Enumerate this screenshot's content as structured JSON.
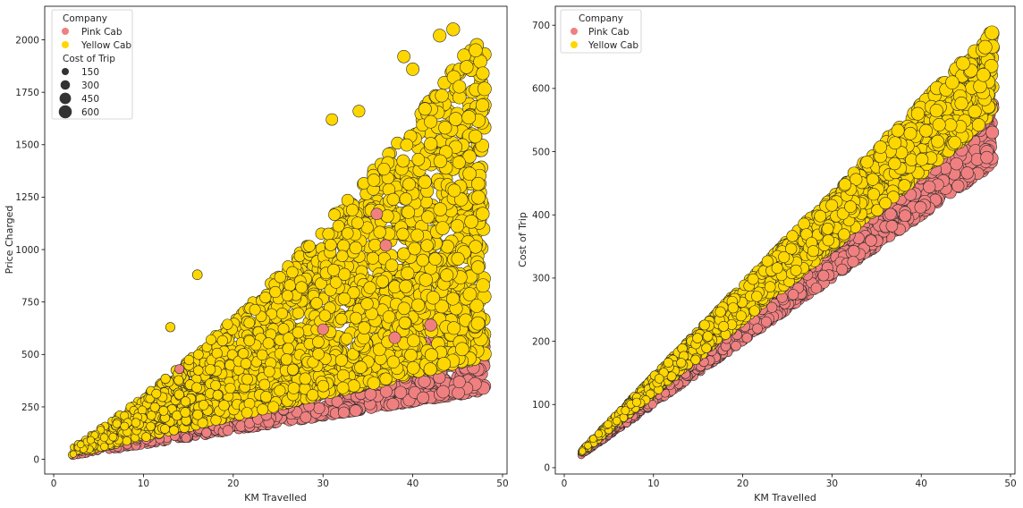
{
  "chart_data": [
    {
      "type": "scatter",
      "xlabel": "KM Travelled",
      "ylabel": "Price Charged",
      "xlim": [
        -1,
        50.5
      ],
      "ylim": [
        -70,
        2160
      ],
      "xticks": [
        "0",
        "10",
        "20",
        "30",
        "40",
        "50"
      ],
      "xtick_values": [
        0,
        10,
        20,
        30,
        40,
        50
      ],
      "yticks": [
        "0",
        "250",
        "500",
        "750",
        "1000",
        "1250",
        "1500",
        "1750",
        "2000"
      ],
      "ytick_values": [
        0,
        250,
        500,
        750,
        1000,
        1250,
        1500,
        1750,
        2000
      ],
      "legend": {
        "position": "top-left",
        "hue_title": "Company",
        "hue_entries": [
          {
            "label": "Pink Cab",
            "color": "#f08080"
          },
          {
            "label": "Yellow Cab",
            "color": "#ffd700"
          }
        ],
        "size_title": "Cost of Trip",
        "size_entries": [
          "150",
          "300",
          "450",
          "600"
        ],
        "size_values": [
          150,
          300,
          450,
          600
        ]
      },
      "series": [
        {
          "name": "Pink Cab",
          "color": "#f08080",
          "x_range": [
            1.9,
            48.0
          ],
          "price_per_km_range": [
            6.9,
            13.5
          ],
          "points_hint": [
            [
              2,
              25
            ],
            [
              10,
              95
            ],
            [
              20,
              200
            ],
            [
              30,
              290
            ],
            [
              40,
              390
            ],
            [
              45,
              440
            ],
            [
              48,
              480
            ],
            [
              48,
              600
            ]
          ]
        },
        {
          "name": "Yellow Cab",
          "color": "#ffd700",
          "x_range": [
            1.9,
            48.0
          ],
          "price_per_km_range": [
            10.0,
            45.0
          ],
          "points_hint": [
            [
              2,
              30
            ],
            [
              10,
              250
            ],
            [
              20,
              700
            ],
            [
              30,
              1100
            ],
            [
              40,
              1500
            ],
            [
              43,
              2020
            ],
            [
              44,
              2050
            ],
            [
              48,
              1700
            ]
          ]
        }
      ]
    },
    {
      "type": "scatter",
      "xlabel": "KM Travelled",
      "ylabel": "Cost of Trip",
      "xlim": [
        -1,
        50.5
      ],
      "ylim": [
        -10,
        730
      ],
      "xticks": [
        "0",
        "10",
        "20",
        "30",
        "40",
        "50"
      ],
      "xtick_values": [
        0,
        10,
        20,
        30,
        40,
        50
      ],
      "yticks": [
        "0",
        "100",
        "200",
        "300",
        "400",
        "500",
        "600",
        "700"
      ],
      "ytick_values": [
        0,
        100,
        200,
        300,
        400,
        500,
        600,
        700
      ],
      "legend": {
        "position": "top-left",
        "hue_title": "Company",
        "hue_entries": [
          {
            "label": "Pink Cab",
            "color": "#f08080"
          },
          {
            "label": "Yellow Cab",
            "color": "#ffd700"
          }
        ]
      },
      "series": [
        {
          "name": "Pink Cab",
          "color": "#f08080",
          "x_range": [
            1.9,
            48.0
          ],
          "cost_per_km_range": [
            10.0,
            12.0
          ]
        },
        {
          "name": "Yellow Cab",
          "color": "#ffd700",
          "x_range": [
            1.9,
            48.0
          ],
          "cost_per_km_range": [
            11.6,
            14.4
          ]
        }
      ]
    }
  ]
}
